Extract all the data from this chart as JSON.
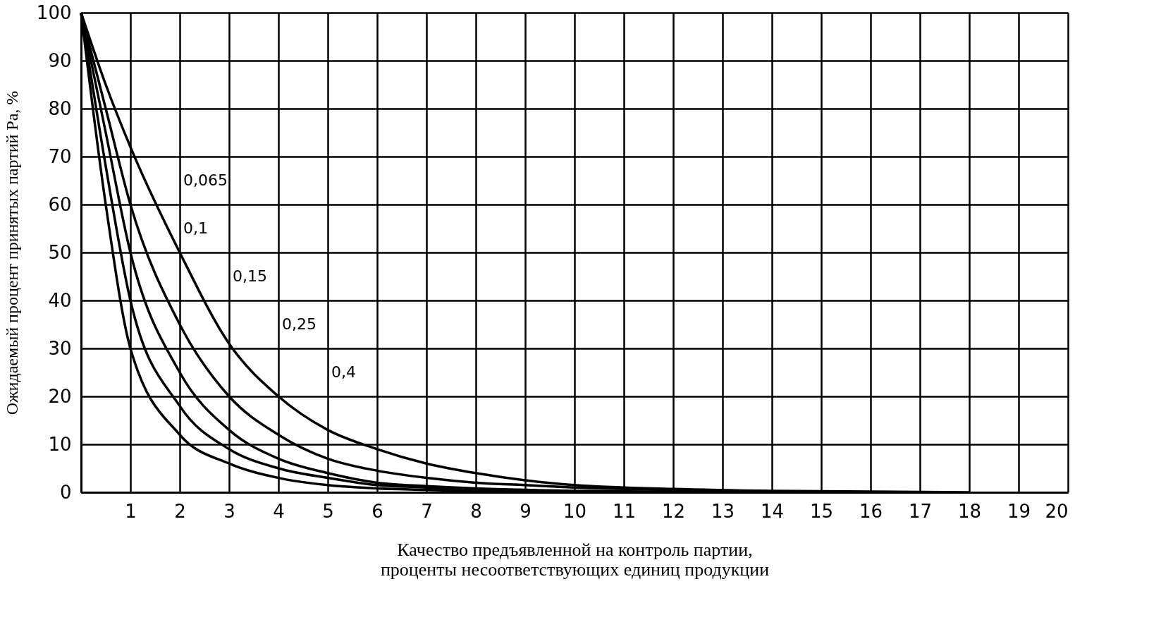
{
  "chart_data": {
    "type": "line",
    "xlabel": "Качество предъявленной на контроль партии,\nпроценты несоответствующих единиц продукции",
    "ylabel": "Ожидаемый процент принятых партий Pa, %",
    "series": [
      {
        "color": "#000000",
        "x": [
          0,
          0.5,
          1,
          2,
          3,
          4,
          5,
          6,
          7,
          8,
          9,
          10
        ],
        "values": [
          100,
          60,
          30,
          12,
          6,
          3,
          1.5,
          0.8,
          0.5,
          0.2,
          0.1,
          0
        ]
      },
      {
        "color": "#000000",
        "x": [
          0,
          0.5,
          1,
          2,
          3,
          4,
          5,
          6,
          7,
          8,
          9,
          11
        ],
        "values": [
          100,
          68,
          40,
          18,
          9,
          5,
          3,
          1.5,
          1,
          0.5,
          0.3,
          0
        ]
      },
      {
        "color": "#000000",
        "x": [
          0,
          0.5,
          1,
          2,
          3,
          4,
          5,
          6,
          7,
          8,
          9,
          10,
          13
        ],
        "values": [
          100,
          75,
          50,
          25,
          13,
          7,
          4,
          2,
          1.3,
          0.8,
          0.5,
          0.3,
          0
        ]
      },
      {
        "color": "#000000",
        "x": [
          0,
          0.5,
          1,
          2,
          3,
          4,
          5,
          6,
          7,
          8,
          9,
          10,
          12,
          15
        ],
        "values": [
          100,
          80,
          60,
          35,
          20,
          12,
          7,
          4.5,
          3,
          2,
          1.5,
          1,
          0.5,
          0
        ]
      },
      {
        "color": "#000000",
        "x": [
          0,
          0.5,
          1,
          2,
          3,
          4,
          5,
          6,
          7,
          8,
          9,
          10,
          12,
          14,
          18
        ],
        "values": [
          100,
          85,
          72,
          50,
          31,
          20,
          13,
          9,
          6,
          4,
          2.5,
          1.5,
          0.7,
          0.3,
          0
        ]
      }
    ],
    "annotations": [
      "0,065",
      "0,1",
      "0,15",
      "0,25",
      "0,4"
    ],
    "xlim": [
      0,
      20
    ],
    "xticks": [
      {
        "value": 0,
        "label": null
      },
      1,
      2,
      3,
      4,
      5,
      6,
      7,
      8,
      9,
      10,
      11,
      12,
      13,
      14,
      15,
      16,
      17,
      18,
      19,
      20
    ],
    "ylim": [
      0,
      100
    ],
    "yticks": [
      0,
      10,
      20,
      30,
      40,
      50,
      60,
      70,
      80,
      90,
      100
    ],
    "grid": true,
    "legend": false,
    "marker": "none",
    "line_style": "solid"
  }
}
